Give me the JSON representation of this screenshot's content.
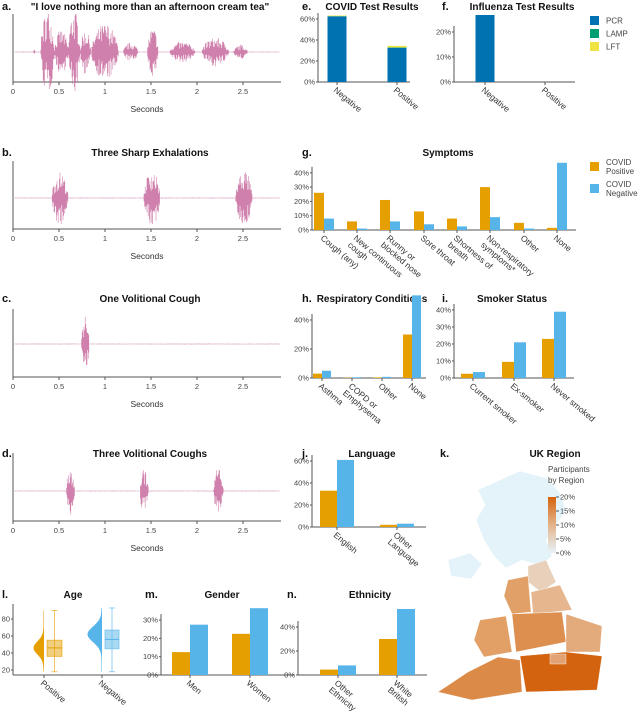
{
  "colors": {
    "covid_positive": "#E69F00",
    "covid_negative": "#56B4E9",
    "PCR": "#0072B2",
    "LAMP": "#009E73",
    "LFT": "#F0E442",
    "waveform": "#c76a9e",
    "map_low": "#e6f3f9",
    "map_high": "#d4620c"
  },
  "chart_data": [
    {
      "letter": "a.",
      "type": "waveform",
      "title": "\"I love nothing more than an afternoon cream tea\"",
      "xlabel": "Seconds",
      "x_ticks": [
        "0",
        "0.5",
        "1",
        "1.5",
        "2",
        "2.5"
      ]
    },
    {
      "letter": "b.",
      "type": "waveform",
      "title": "Three Sharp Exhalations",
      "xlabel": "Seconds",
      "x_ticks": [
        "0",
        "0.5",
        "1",
        "1.5",
        "2",
        "2.5"
      ]
    },
    {
      "letter": "c.",
      "type": "waveform",
      "title": "One Volitional Cough",
      "xlabel": "Seconds",
      "x_ticks": [
        "0",
        "0.5",
        "1",
        "1.5",
        "2",
        "2.5"
      ]
    },
    {
      "letter": "d.",
      "type": "waveform",
      "title": "Three Volitional Coughs",
      "xlabel": "Seconds",
      "x_ticks": [
        "0",
        "0.5",
        "1",
        "1.5",
        "2",
        "2.5"
      ]
    },
    {
      "letter": "e.",
      "type": "bar",
      "stacked": true,
      "title": "COVID Test Results",
      "categories": [
        [
          "Negative"
        ],
        [
          "Positive"
        ]
      ],
      "y_ticks": [
        "0%",
        "20%",
        "40%",
        "60%"
      ],
      "series": [
        {
          "name": "PCR",
          "values": [
            62.5,
            32.5
          ]
        },
        {
          "name": "LAMP",
          "values": [
            0.2,
            0.4
          ]
        },
        {
          "name": "LFT",
          "values": [
            0.6,
            1.5
          ]
        }
      ]
    },
    {
      "letter": "f.",
      "type": "bar",
      "stacked": true,
      "title": "Influenza Test Results",
      "categories": [
        [
          "Negative"
        ],
        [
          "Positive"
        ]
      ],
      "y_ticks": [
        "0%",
        "10%",
        "20%"
      ],
      "series": [
        {
          "name": "PCR",
          "values": [
            26.8,
            0
          ]
        },
        {
          "name": "LAMP",
          "values": [
            0,
            0
          ]
        },
        {
          "name": "LFT",
          "values": [
            0,
            0
          ]
        }
      ],
      "legend": [
        "PCR",
        "LAMP",
        "LFT"
      ]
    },
    {
      "letter": "g.",
      "type": "bar",
      "title": "Symptoms",
      "categories": [
        [
          "Cough (any)"
        ],
        [
          "New continuous",
          "cough"
        ],
        [
          "Runny or",
          "blocked nose"
        ],
        [
          "Sore throat"
        ],
        [
          "Shortness of",
          "breath"
        ],
        [
          "Non-respiratory",
          "symptoms*"
        ],
        [
          "Other"
        ],
        [
          "None"
        ]
      ],
      "y_ticks": [
        "0%",
        "10%",
        "20%",
        "30%",
        "40%"
      ],
      "series": [
        {
          "name": "COVID Positive",
          "values": [
            26,
            6,
            21,
            13,
            8,
            30,
            5,
            1.5
          ]
        },
        {
          "name": "COVID Negative",
          "values": [
            8,
            1,
            6,
            4,
            2.5,
            9,
            1,
            47
          ]
        }
      ],
      "legend_position": "right"
    },
    {
      "letter": "h.",
      "type": "bar",
      "title": "Respiratory Conditions",
      "categories": [
        [
          "Asthma"
        ],
        [
          "COPD or",
          "Emphysema"
        ],
        [
          "Other"
        ],
        [
          "None"
        ]
      ],
      "y_ticks": [
        "0%",
        "20%",
        "40%"
      ],
      "series": [
        {
          "name": "COVID Positive",
          "values": [
            3,
            0.2,
            0.4,
            30
          ]
        },
        {
          "name": "COVID Negative",
          "values": [
            5,
            0.5,
            0.8,
            57
          ]
        }
      ]
    },
    {
      "letter": "i.",
      "type": "bar",
      "title": "Smoker Status",
      "categories": [
        [
          "Current smoker"
        ],
        [
          "Ex-smoker"
        ],
        [
          "Never smoked"
        ]
      ],
      "y_ticks": [
        "0%",
        "10%",
        "20%",
        "30%",
        "40%"
      ],
      "series": [
        {
          "name": "COVID Positive",
          "values": [
            2.5,
            9.5,
            23
          ]
        },
        {
          "name": "COVID Negative",
          "values": [
            3.5,
            21,
            39
          ]
        }
      ]
    },
    {
      "letter": "j.",
      "type": "bar",
      "title": "Language",
      "categories": [
        [
          "English"
        ],
        [
          "Other",
          "Language"
        ]
      ],
      "y_ticks": [
        "0%",
        "20%",
        "40%",
        "60%"
      ],
      "series": [
        {
          "name": "COVID Positive",
          "values": [
            33,
            2
          ]
        },
        {
          "name": "COVID Negative",
          "values": [
            61,
            3
          ]
        }
      ]
    },
    {
      "letter": "k.",
      "type": "choropleth",
      "title": "UK Region",
      "legend_title": [
        "Participants",
        "by Region"
      ],
      "legend_ticks": [
        "20%",
        "15%",
        "10%",
        "5%",
        "0%"
      ]
    },
    {
      "letter": "l.",
      "type": "box-violin",
      "title": "Age",
      "categories": [
        [
          "Positive"
        ],
        [
          "Negative"
        ]
      ],
      "y_ticks": [
        "20",
        "40",
        "60",
        "80"
      ],
      "boxes": [
        {
          "min": 18,
          "q1": 36,
          "median": 46,
          "q3": 55,
          "max": 90
        },
        {
          "min": 18,
          "q1": 45,
          "median": 56,
          "q3": 67,
          "max": 93
        }
      ]
    },
    {
      "letter": "m.",
      "type": "bar",
      "title": "Gender",
      "categories": [
        [
          "Men"
        ],
        [
          "Women"
        ]
      ],
      "y_ticks": [
        "0%",
        "10%",
        "20%",
        "30%"
      ],
      "series": [
        {
          "name": "COVID Positive",
          "values": [
            12.5,
            22.5
          ]
        },
        {
          "name": "COVID Negative",
          "values": [
            27.5,
            36.5
          ]
        }
      ]
    },
    {
      "letter": "n.",
      "type": "bar",
      "title": "Ethnicity",
      "categories": [
        [
          "Other",
          "Ethnicity"
        ],
        [
          "White",
          "British"
        ]
      ],
      "y_ticks": [
        "0%",
        "20%",
        "40%"
      ],
      "series": [
        {
          "name": "COVID Positive",
          "values": [
            4.5,
            30
          ]
        },
        {
          "name": "COVID Negative",
          "values": [
            8,
            55
          ]
        }
      ]
    }
  ]
}
